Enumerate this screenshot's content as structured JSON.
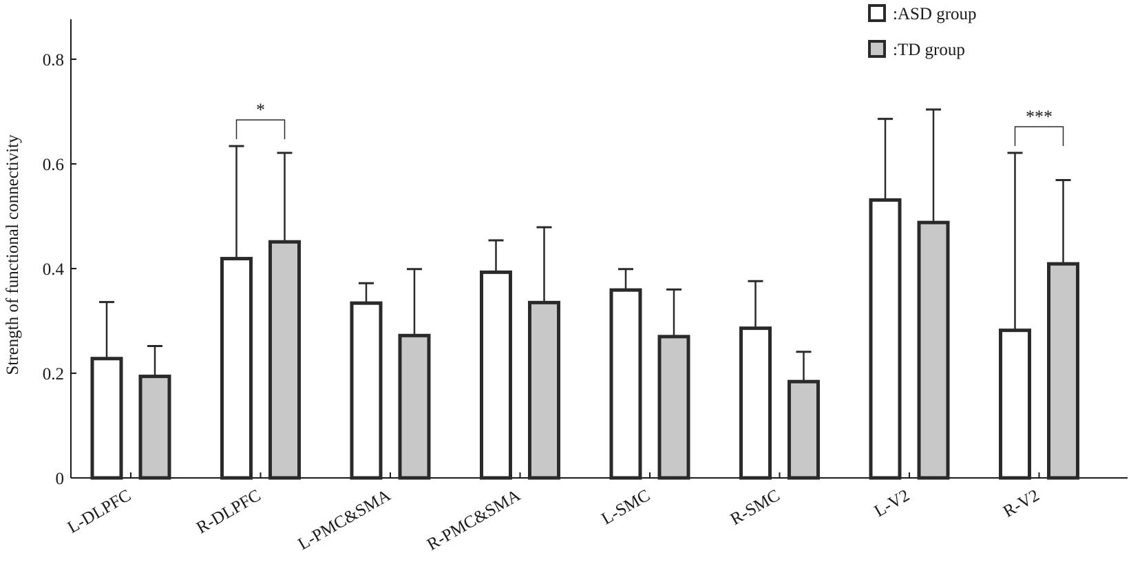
{
  "chart_data": {
    "type": "bar",
    "title": "",
    "xlabel": "",
    "ylabel": "Strength of functional connectivity",
    "ylim": [
      0,
      0.88
    ],
    "yticks": [
      0,
      0.2,
      0.4,
      0.6,
      0.8
    ],
    "ytick_labels": [
      "0",
      "0.2",
      "0.4",
      "0.6",
      "0.8"
    ],
    "grid": false,
    "legend_position": "top-right",
    "categories": [
      "L-DLPFC",
      "R-DLPFC",
      "L-PMC&SMA",
      "R-PMC&SMA",
      "L-SMC",
      "R-SMC",
      "L-V2",
      "R-V2"
    ],
    "series": [
      {
        "name": ":ASD group",
        "color": "#ffffff",
        "values": [
          0.228,
          0.419,
          0.334,
          0.393,
          0.359,
          0.286,
          0.531,
          0.282
        ],
        "error": [
          0.108,
          0.215,
          0.038,
          0.061,
          0.04,
          0.09,
          0.155,
          0.339
        ]
      },
      {
        "name": ":TD group",
        "color": "#c8c8c8",
        "values": [
          0.194,
          0.451,
          0.272,
          0.335,
          0.27,
          0.184,
          0.488,
          0.409
        ],
        "error": [
          0.058,
          0.17,
          0.127,
          0.144,
          0.09,
          0.057,
          0.216,
          0.16
        ]
      }
    ],
    "annotations": [
      {
        "category": "R-DLPFC",
        "text": "*"
      },
      {
        "category": "R-V2",
        "text": "***"
      }
    ]
  }
}
